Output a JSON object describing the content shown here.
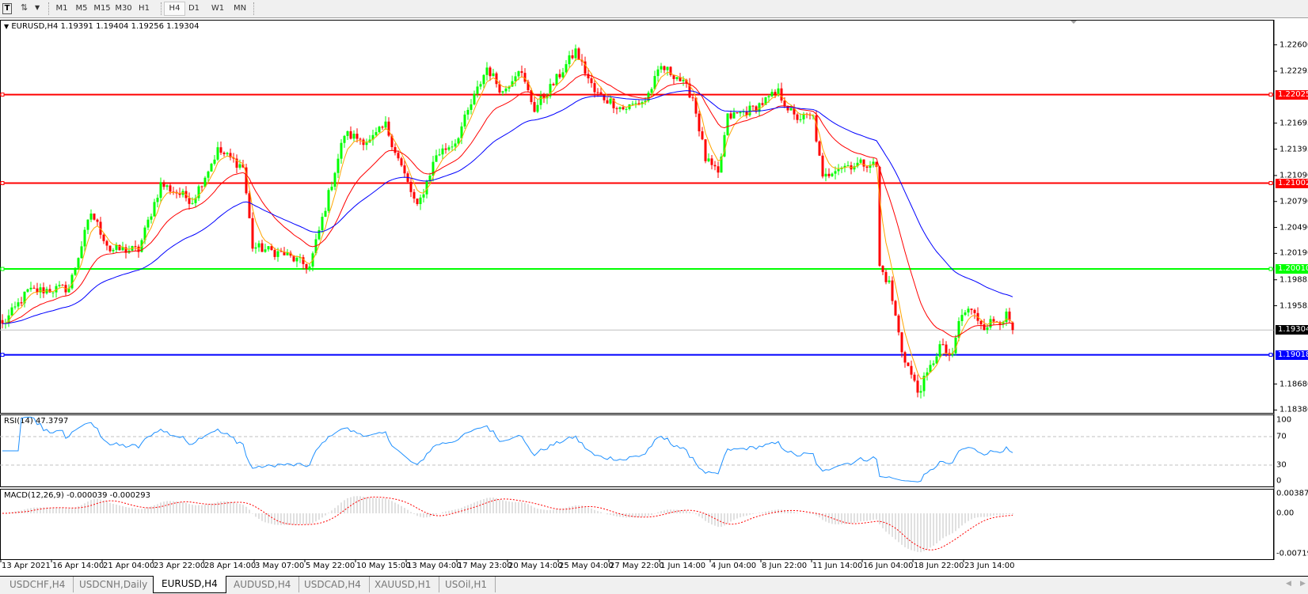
{
  "toolbar": {
    "text_tool_icon": "text-tool-icon",
    "cursor_icon": "cursor-arrows-icon",
    "timeframes": [
      "M1",
      "M5",
      "M15",
      "M30",
      "H1",
      "H4",
      "D1",
      "W1",
      "MN"
    ],
    "active_timeframe": "H4"
  },
  "chart": {
    "title": "EURUSD,H4  1.19391 1.19404 1.19256 1.19304",
    "symbol": "EURUSD",
    "timeframe": "H4",
    "last_bar": {
      "open": 1.19391,
      "high": 1.19404,
      "low": 1.19256,
      "close": 1.19304
    },
    "price_axis": [
      "1.22600",
      "1.22295",
      "1.21695",
      "1.21395",
      "1.21090",
      "1.20790",
      "1.20490",
      "1.20190",
      "1.19885",
      "1.19585",
      "1.18680",
      "1.18380"
    ],
    "bid_label": "1.19304",
    "hlines": [
      {
        "price": "1.22025",
        "color": "#ff0000"
      },
      {
        "price": "1.21002",
        "color": "#ff0000"
      },
      {
        "price": "1.20010",
        "color": "#00ff00"
      },
      {
        "price": "1.19018",
        "color": "#0000ff"
      }
    ],
    "colors": {
      "bull": "#00ff00",
      "bear": "#ff0000",
      "ma_fast": "#ffa500",
      "ma_mid": "#ff0000",
      "ma_slow": "#0000ff",
      "rsi": "#1e90ff",
      "macd_hist": "#c0c0c0",
      "macd_signal": "#ff0000",
      "bid": "#c0c0c0"
    },
    "close_path": [
      [
        0,
        1.1936
      ],
      [
        8,
        1.1975
      ],
      [
        21,
        1.1979
      ],
      [
        28,
        1.2066
      ],
      [
        34,
        1.2023
      ],
      [
        43,
        1.2023
      ],
      [
        50,
        1.2099
      ],
      [
        60,
        1.208
      ],
      [
        68,
        1.2138
      ],
      [
        76,
        1.2119
      ],
      [
        79,
        1.2027
      ],
      [
        89,
        1.2018
      ],
      [
        97,
        1.2003
      ],
      [
        108,
        1.2157
      ],
      [
        116,
        1.2148
      ],
      [
        121,
        1.2167
      ],
      [
        129,
        1.209
      ],
      [
        131,
        1.2071
      ],
      [
        137,
        1.2133
      ],
      [
        143,
        1.2148
      ],
      [
        153,
        1.2234
      ],
      [
        158,
        1.2205
      ],
      [
        163,
        1.2234
      ],
      [
        168,
        1.2186
      ],
      [
        174,
        1.2215
      ],
      [
        181,
        1.2253
      ],
      [
        187,
        1.2205
      ],
      [
        196,
        1.2186
      ],
      [
        203,
        1.2196
      ],
      [
        208,
        1.2234
      ],
      [
        213,
        1.2224
      ],
      [
        218,
        1.22
      ],
      [
        222,
        1.2128
      ],
      [
        226,
        1.2109
      ],
      [
        229,
        1.2176
      ],
      [
        237,
        1.2186
      ],
      [
        245,
        1.2205
      ],
      [
        250,
        1.2176
      ],
      [
        256,
        1.2176
      ],
      [
        259,
        1.2104
      ],
      [
        263,
        1.2119
      ],
      [
        274,
        1.2124
      ],
      [
        276,
        1.2119
      ],
      [
        277,
        1.2003
      ],
      [
        280,
        1.1984
      ],
      [
        284,
        1.1907
      ],
      [
        289,
        1.1859
      ],
      [
        292,
        1.1878
      ],
      [
        296,
        1.1912
      ],
      [
        300,
        1.1898
      ],
      [
        302,
        1.1941
      ],
      [
        305,
        1.1955
      ],
      [
        310,
        1.1936
      ],
      [
        317,
        1.1946
      ],
      [
        319,
        1.19304
      ]
    ],
    "time_axis": [
      "13 Apr 2021",
      "16 Apr 14:00",
      "21 Apr 04:00",
      "23 Apr 22:00",
      "28 Apr 14:00",
      "3 May 07:00",
      "5 May 22:00",
      "10 May 15:00",
      "13 May 04:00",
      "17 May 23:00",
      "20 May 14:00",
      "25 May 04:00",
      "27 May 22:00",
      "1 Jun 14:00",
      "4 Jun 04:00",
      "8 Jun 22:00",
      "11 Jun 14:00",
      "16 Jun 04:00",
      "18 Jun 22:00",
      "23 Jun 14:00"
    ]
  },
  "rsi": {
    "title": "RSI(14) 47.3797",
    "axis": [
      "100",
      "70",
      "30",
      "0"
    ]
  },
  "macd": {
    "title": "MACD(12,26,9) -0.000039 -0.000293",
    "axis": [
      "0.003873",
      "0.00",
      "-0.007195"
    ]
  },
  "tabs": [
    {
      "label": "USDCHF,H4",
      "active": false
    },
    {
      "label": "USDCNH,Daily",
      "active": false
    },
    {
      "label": "EURUSD,H4",
      "active": true
    },
    {
      "label": "AUDUSD,H4",
      "active": false
    },
    {
      "label": "USDCAD,H4",
      "active": false
    },
    {
      "label": "XAUUSD,H1",
      "active": false
    },
    {
      "label": "USOil,H1",
      "active": false
    }
  ]
}
